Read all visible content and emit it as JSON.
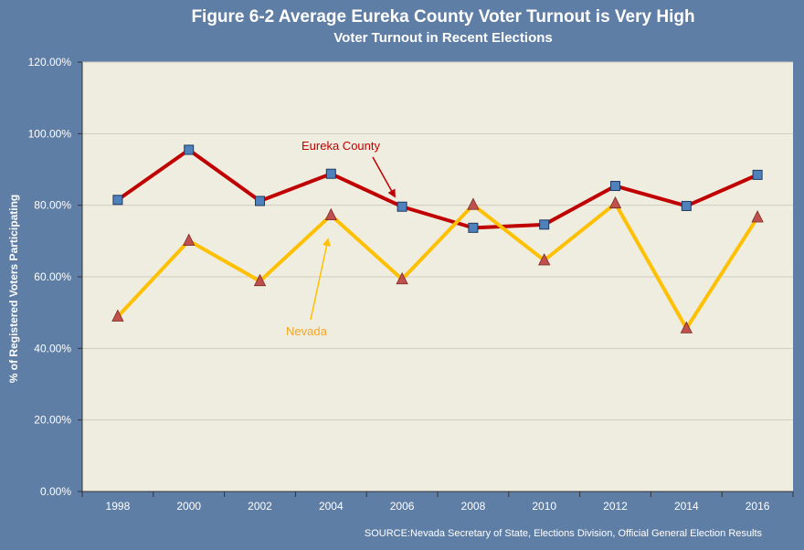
{
  "title": "Figure 6-2 Average Eureka County Voter Turnout is Very High",
  "subtitle": "Voter Turnout in Recent Elections",
  "source": "SOURCE:Nevada Secretary of State, Elections Division, Official General Election Results",
  "colors": {
    "background": "#5f7ea6",
    "plot_area": "#efece0",
    "eureka_line": "#c00000",
    "eureka_marker": "#4f81bd",
    "nevada_line": "#ffc000",
    "nevada_marker": "#c0504d",
    "nevada_label": "#f5a623"
  },
  "chart_data": {
    "type": "line",
    "title": "Figure 6-2 Average Eureka County Voter Turnout is Very High",
    "subtitle": "Voter Turnout in Recent Elections",
    "xlabel": "",
    "ylabel": "% of Registered Voters Participating",
    "categories": [
      "1998",
      "2000",
      "2002",
      "2004",
      "2006",
      "2008",
      "2010",
      "2012",
      "2014",
      "2016"
    ],
    "ylim": [
      0,
      120
    ],
    "yticks": [
      "0.00%",
      "20.00%",
      "40.00%",
      "60.00%",
      "80.00%",
      "100.00%",
      "120.00%"
    ],
    "grid": "horizontal",
    "series": [
      {
        "name": "Eureka County",
        "values": [
          81.5,
          95.5,
          81.2,
          88.8,
          79.6,
          73.7,
          74.6,
          85.4,
          79.8,
          88.5
        ],
        "marker": "square"
      },
      {
        "name": "Nevada",
        "values": [
          48.9,
          70.1,
          58.8,
          77.2,
          59.3,
          80.1,
          64.6,
          80.5,
          45.6,
          76.6
        ],
        "marker": "triangle"
      }
    ],
    "annotations": [
      {
        "text": "Eureka County",
        "series": "Eureka County"
      },
      {
        "text": "Nevada",
        "series": "Nevada"
      }
    ]
  }
}
